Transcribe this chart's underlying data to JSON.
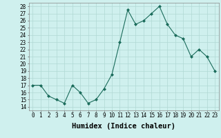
{
  "x": [
    0,
    1,
    2,
    3,
    4,
    5,
    6,
    7,
    8,
    9,
    10,
    11,
    12,
    13,
    14,
    15,
    16,
    17,
    18,
    19,
    20,
    21,
    22,
    23
  ],
  "y": [
    17,
    17,
    15.5,
    15,
    14.5,
    17,
    16,
    14.5,
    15,
    16.5,
    18.5,
    23,
    27.5,
    25.5,
    26,
    27,
    28,
    25.5,
    24,
    23.5,
    21,
    22,
    21,
    19
  ],
  "line_color": "#1a6b5a",
  "marker": "D",
  "marker_size": 2.0,
  "bg_color": "#cff0ee",
  "grid_color": "#b0d8d4",
  "xlabel": "Humidex (Indice chaleur)",
  "ylim": [
    13.5,
    28.5
  ],
  "xlim": [
    -0.5,
    23.5
  ],
  "yticks": [
    14,
    15,
    16,
    17,
    18,
    19,
    20,
    21,
    22,
    23,
    24,
    25,
    26,
    27,
    28
  ],
  "xticks": [
    0,
    1,
    2,
    3,
    4,
    5,
    6,
    7,
    8,
    9,
    10,
    11,
    12,
    13,
    14,
    15,
    16,
    17,
    18,
    19,
    20,
    21,
    22,
    23
  ],
  "tick_label_fontsize": 5.5,
  "xlabel_fontsize": 7.5
}
